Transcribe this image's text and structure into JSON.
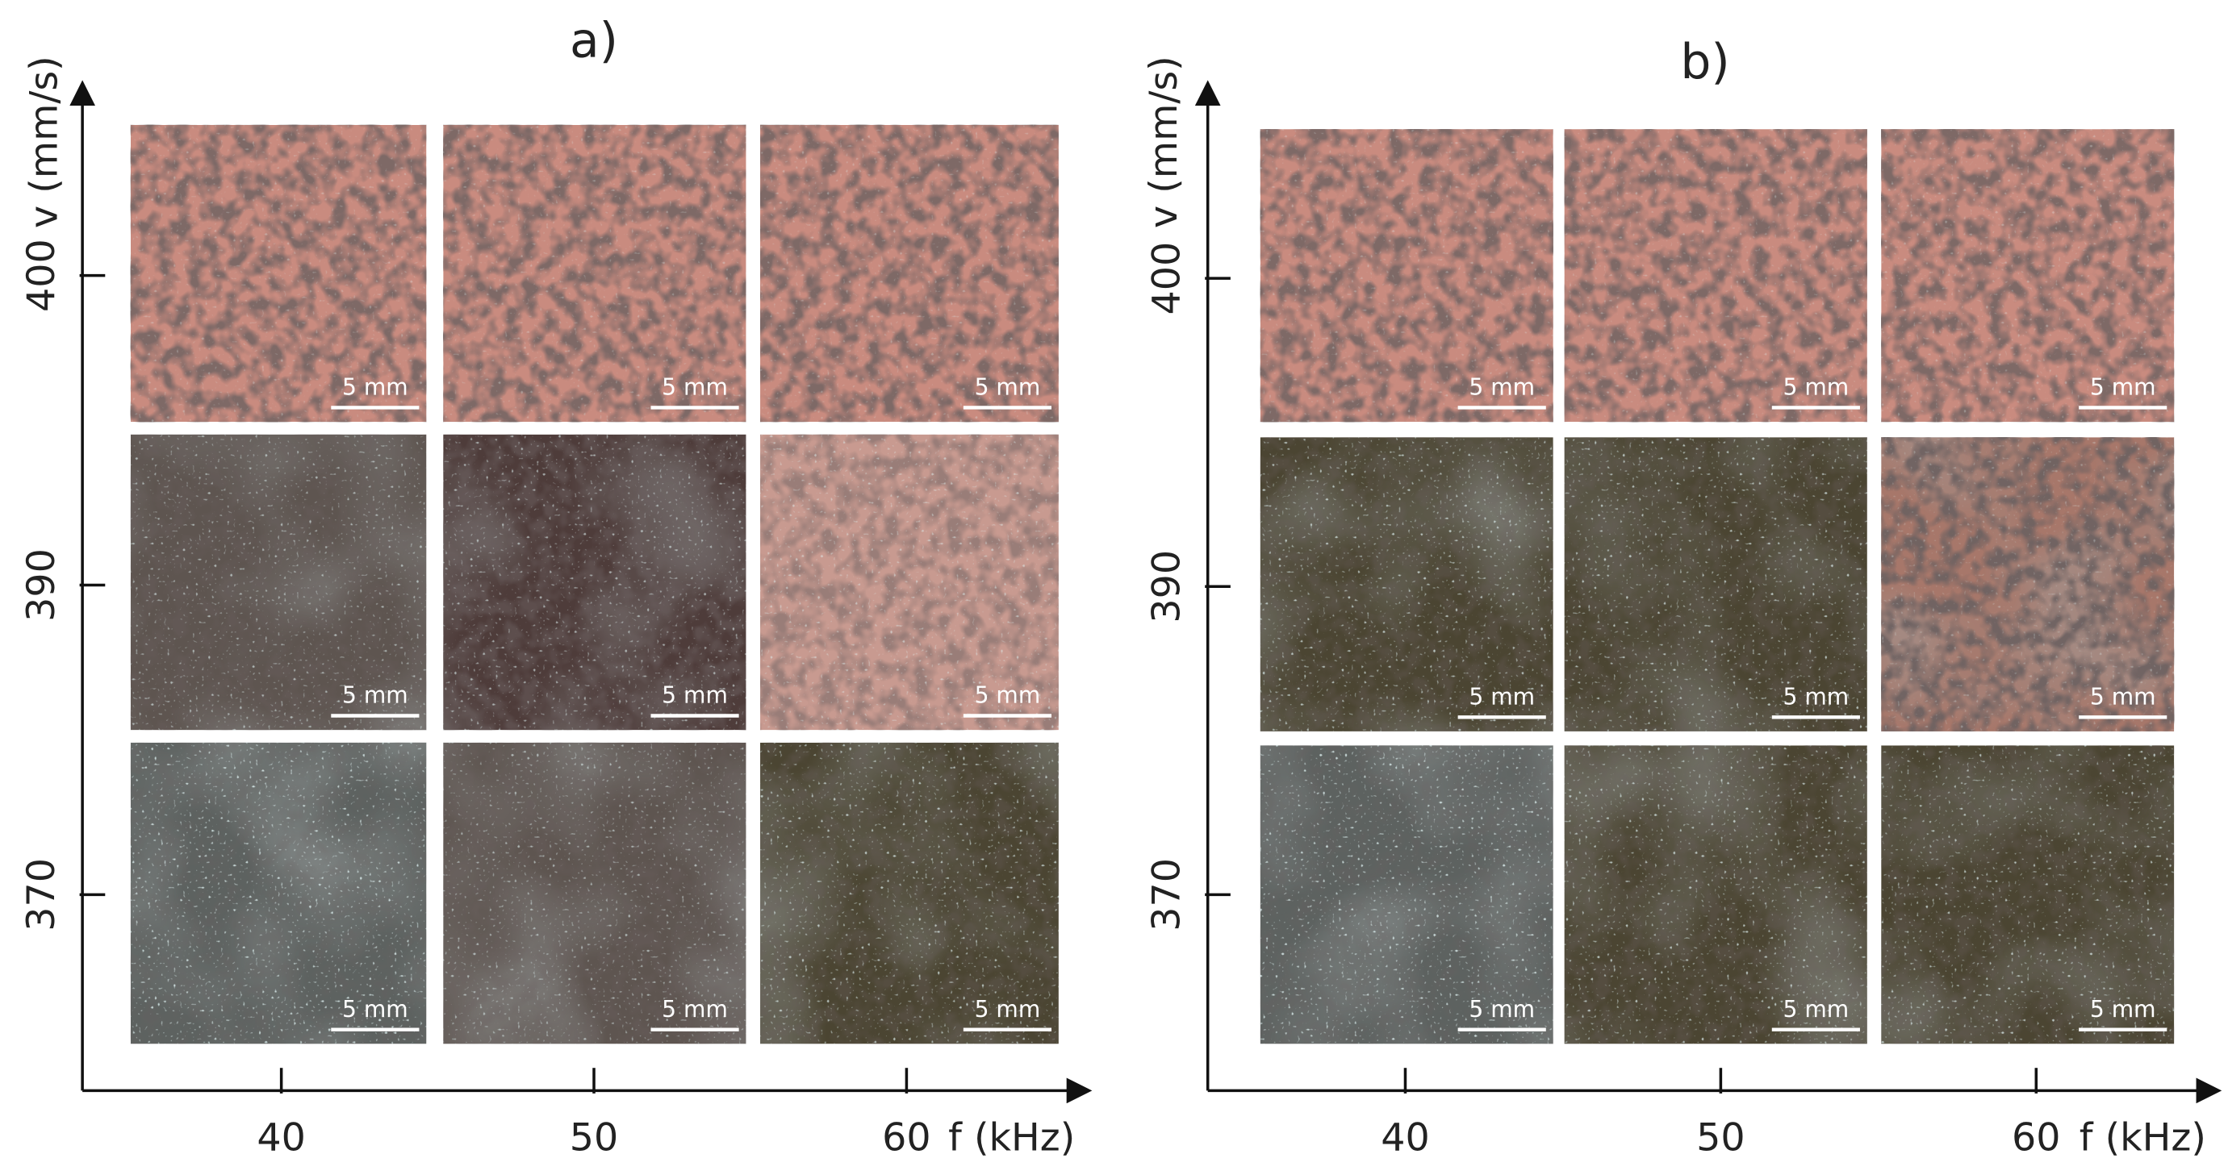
{
  "panels": [
    {
      "label": "a)",
      "y_axis": {
        "label": "v (mm/s)",
        "ticks": [
          "400",
          "390",
          "370"
        ]
      },
      "x_axis": {
        "label": "f (kHz)",
        "ticks": [
          "40",
          "50",
          "60"
        ]
      },
      "tiles": [
        [
          {
            "scale_bar": "5 mm"
          },
          {
            "scale_bar": "5 mm"
          },
          {
            "scale_bar": "5 mm"
          }
        ],
        [
          {
            "scale_bar": "5 mm"
          },
          {
            "scale_bar": "5 mm"
          },
          {
            "scale_bar": "5 mm"
          }
        ],
        [
          {
            "scale_bar": "5 mm"
          },
          {
            "scale_bar": "5 mm"
          },
          {
            "scale_bar": "5 mm"
          }
        ]
      ]
    },
    {
      "label": "b)",
      "y_axis": {
        "label": "v (mm/s)",
        "ticks": [
          "400",
          "390",
          "370"
        ]
      },
      "x_axis": {
        "label": "f (kHz)",
        "ticks": [
          "40",
          "50",
          "60"
        ]
      },
      "tiles": [
        [
          {
            "scale_bar": "5 mm"
          },
          {
            "scale_bar": "5 mm"
          },
          {
            "scale_bar": "5 mm"
          }
        ],
        [
          {
            "scale_bar": "5 mm"
          },
          {
            "scale_bar": "5 mm"
          },
          {
            "scale_bar": "5 mm"
          }
        ],
        [
          {
            "scale_bar": "5 mm"
          },
          {
            "scale_bar": "5 mm"
          },
          {
            "scale_bar": "5 mm"
          }
        ]
      ]
    }
  ]
}
